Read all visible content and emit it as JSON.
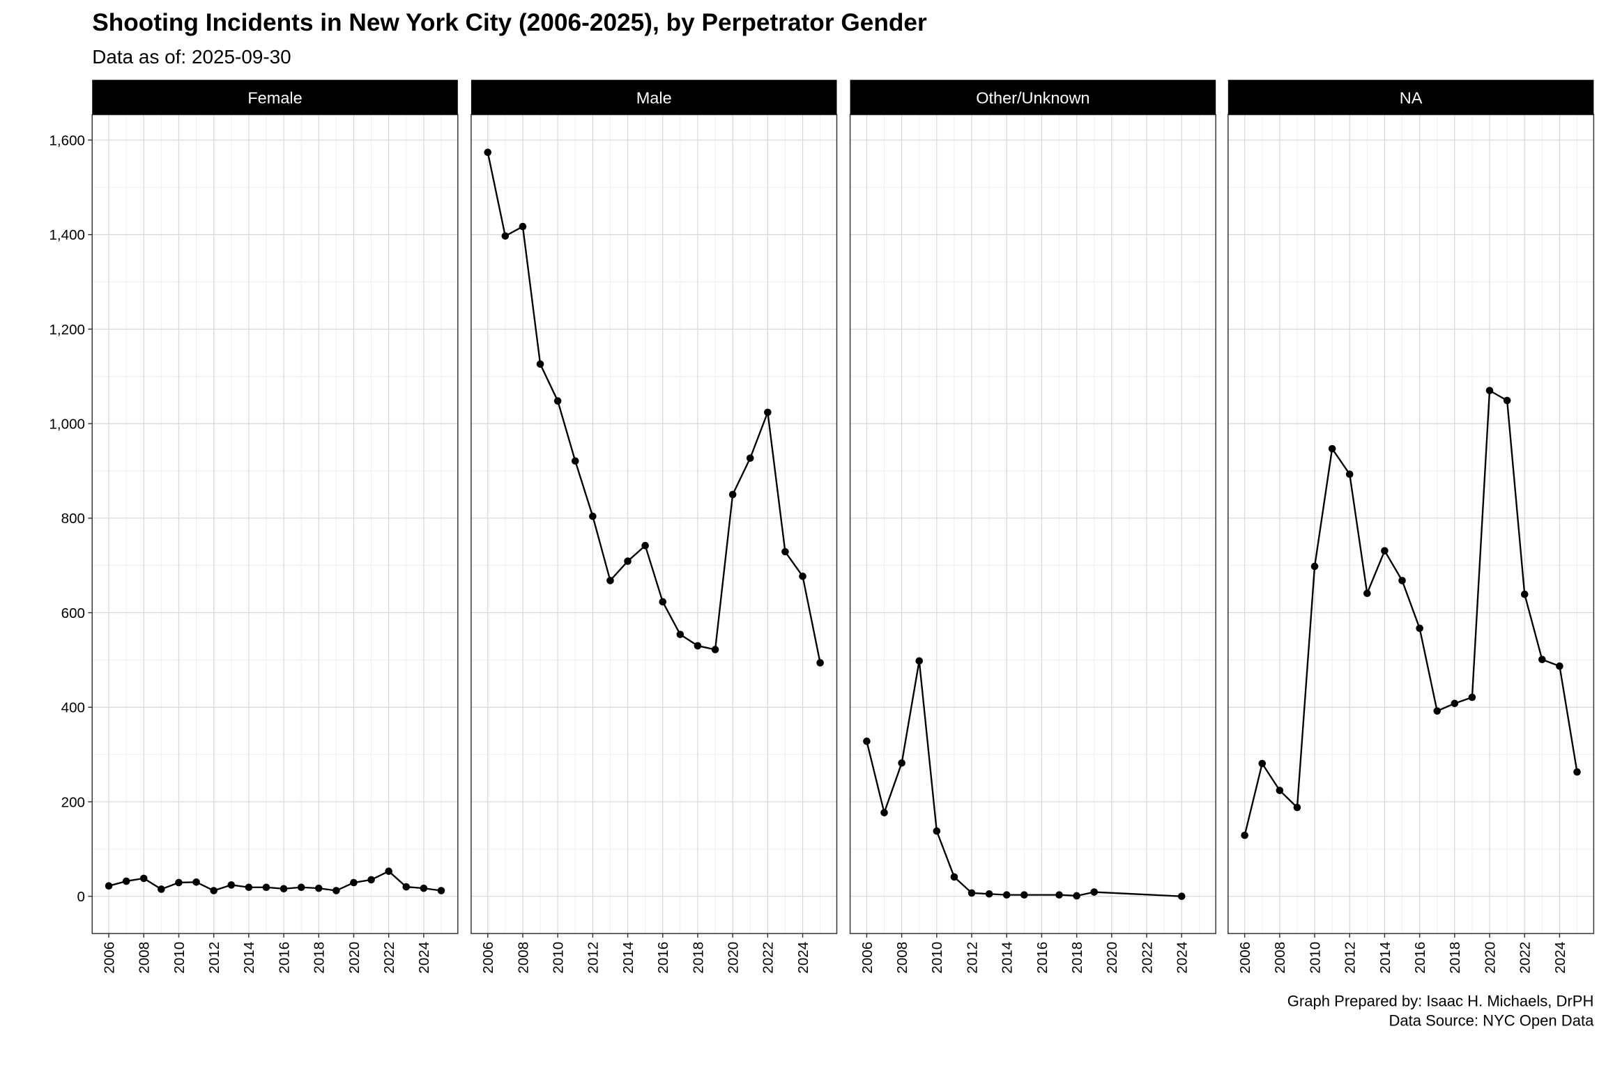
{
  "title": "Shooting Incidents in New York City (2006-2025), by Perpetrator Gender",
  "subtitle": "Data as of: 2025-09-30",
  "caption": [
    "Graph Prepared by: Isaac H. Michaels, DrPH",
    "Data Source: NYC Open Data"
  ],
  "chart_data": [
    {
      "type": "line",
      "title": "Female",
      "color": "#000000",
      "grid": true,
      "minor_grid": true,
      "x": [
        2006,
        2007,
        2008,
        2009,
        2010,
        2011,
        2012,
        2013,
        2014,
        2015,
        2016,
        2017,
        2018,
        2019,
        2020,
        2021,
        2022,
        2023,
        2024,
        2025
      ],
      "values": [
        22,
        32,
        38,
        15,
        29,
        30,
        12,
        24,
        19,
        19,
        16,
        19,
        17,
        12,
        29,
        35,
        53,
        20,
        17,
        12
      ],
      "xlim": [
        2005.05,
        2025.95
      ],
      "xticks": [
        2006,
        2008,
        2010,
        2012,
        2014,
        2016,
        2018,
        2020,
        2022,
        2024
      ],
      "ylim": [
        -78.75,
        1653.75
      ],
      "yticks": [
        0,
        200,
        400,
        600,
        800,
        {
          "value": 1000,
          "label": "1,000"
        },
        {
          "value": 1200,
          "label": "1,200"
        },
        {
          "value": 1400,
          "label": "1,400"
        },
        {
          "value": 1600,
          "label": "1,600"
        }
      ]
    },
    {
      "type": "line",
      "title": "Male",
      "color": "#000000",
      "grid": true,
      "minor_grid": true,
      "x": [
        2006,
        2007,
        2008,
        2009,
        2010,
        2011,
        2012,
        2013,
        2014,
        2015,
        2016,
        2017,
        2018,
        2019,
        2020,
        2021,
        2022,
        2023,
        2024,
        2025
      ],
      "values": [
        1574,
        1397,
        1417,
        1126,
        1048,
        921,
        804,
        668,
        709,
        742,
        623,
        554,
        530,
        522,
        850,
        927,
        1024,
        729,
        677,
        494
      ],
      "xlim": [
        2005.05,
        2025.95
      ],
      "xticks": [
        2006,
        2008,
        2010,
        2012,
        2014,
        2016,
        2018,
        2020,
        2022,
        2024
      ],
      "ylim": [
        -78.75,
        1653.75
      ],
      "yticks": [
        0,
        200,
        400,
        600,
        800,
        {
          "value": 1000,
          "label": "1,000"
        },
        {
          "value": 1200,
          "label": "1,200"
        },
        {
          "value": 1400,
          "label": "1,400"
        },
        {
          "value": 1600,
          "label": "1,600"
        }
      ]
    },
    {
      "type": "line",
      "title": "Other/Unknown",
      "color": "#000000",
      "grid": true,
      "minor_grid": true,
      "x": [
        2006,
        2007,
        2008,
        2009,
        2010,
        2011,
        2012,
        2013,
        2014,
        2015,
        2017,
        2018,
        2019,
        2024
      ],
      "values": [
        328,
        177,
        282,
        498,
        138,
        41,
        7,
        5,
        3,
        3,
        3,
        1,
        9,
        0
      ],
      "xlim": [
        2005.05,
        2025.95
      ],
      "xticks": [
        2006,
        2008,
        2010,
        2012,
        2014,
        2016,
        2018,
        2020,
        2022,
        2024
      ],
      "ylim": [
        -78.75,
        1653.75
      ],
      "yticks": [
        0,
        200,
        400,
        600,
        800,
        {
          "value": 1000,
          "label": "1,000"
        },
        {
          "value": 1200,
          "label": "1,200"
        },
        {
          "value": 1400,
          "label": "1,400"
        },
        {
          "value": 1600,
          "label": "1,600"
        }
      ]
    },
    {
      "type": "line",
      "title": "NA",
      "color": "#000000",
      "grid": true,
      "minor_grid": true,
      "x": [
        2006,
        2007,
        2008,
        2009,
        2010,
        2011,
        2012,
        2013,
        2014,
        2015,
        2016,
        2017,
        2018,
        2019,
        2020,
        2021,
        2022,
        2023,
        2024,
        2025
      ],
      "values": [
        129,
        281,
        224,
        188,
        698,
        947,
        893,
        641,
        731,
        668,
        567,
        392,
        408,
        421,
        1070,
        1049,
        639,
        501,
        487,
        263
      ],
      "xlim": [
        2005.05,
        2025.95
      ],
      "xticks": [
        2006,
        2008,
        2010,
        2012,
        2014,
        2016,
        2018,
        2020,
        2022,
        2024
      ],
      "ylim": [
        -78.75,
        1653.75
      ],
      "yticks": [
        0,
        200,
        400,
        600,
        800,
        {
          "value": 1000,
          "label": "1,000"
        },
        {
          "value": 1200,
          "label": "1,200"
        },
        {
          "value": 1400,
          "label": "1,400"
        },
        {
          "value": 1600,
          "label": "1,600"
        }
      ]
    }
  ]
}
